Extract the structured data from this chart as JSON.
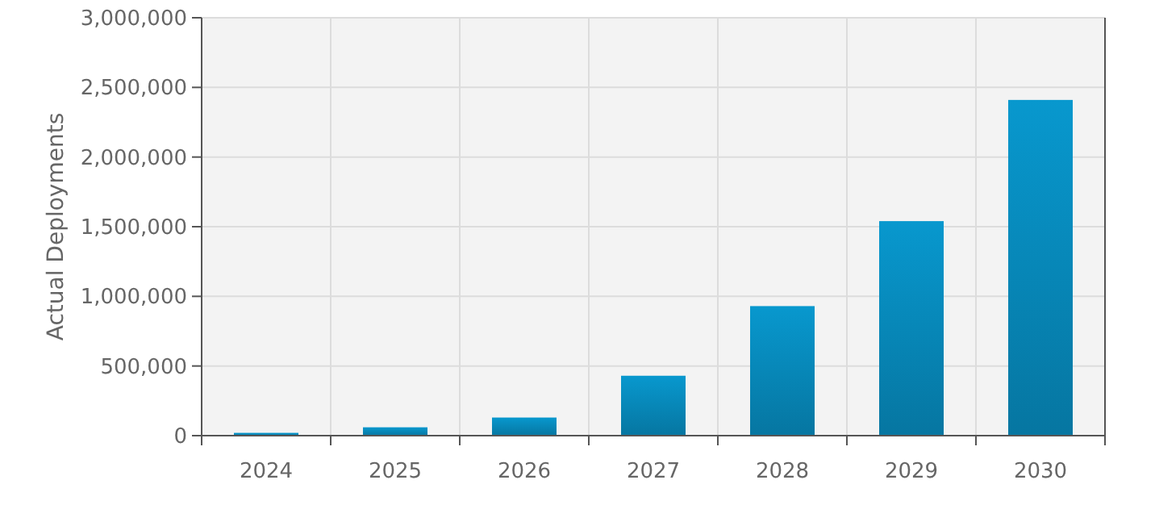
{
  "chart_data": {
    "type": "bar",
    "ylabel": "Actual Deployments",
    "categories": [
      "2024",
      "2025",
      "2026",
      "2027",
      "2028",
      "2029",
      "2030"
    ],
    "values": [
      20000,
      60000,
      130000,
      430000,
      930000,
      1540000,
      2410000
    ],
    "color": "#0786b6",
    "ylim": [
      0,
      3000000
    ],
    "yticks": [
      {
        "value": 0,
        "label": "0"
      },
      {
        "value": 500000,
        "label": "500,000"
      },
      {
        "value": 1000000,
        "label": "1,000,000"
      },
      {
        "value": 1500000,
        "label": "1,500,000"
      },
      {
        "value": 2000000,
        "label": "2,000,000"
      },
      {
        "value": 2500000,
        "label": "2,500,000"
      },
      {
        "value": 3000000,
        "label": "3,000,000"
      }
    ],
    "grid": true
  }
}
